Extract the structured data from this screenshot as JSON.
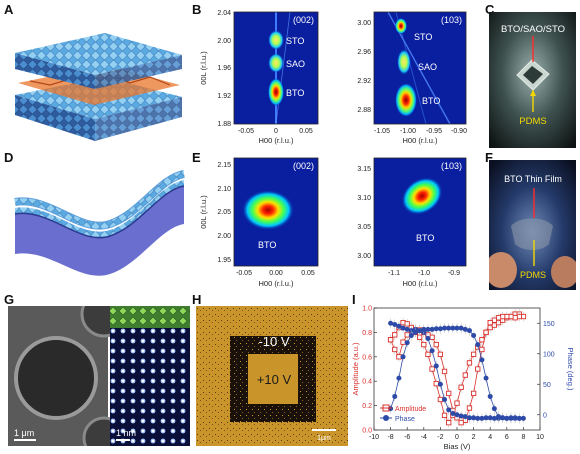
{
  "panel_labels": {
    "A": "A",
    "B": "B",
    "C": "C",
    "D": "D",
    "E": "E",
    "F": "F",
    "G": "G",
    "H": "H",
    "I": "I"
  },
  "panel_b": {
    "left": {
      "reflection": "(002)",
      "ylabel": "00L (r.l.u.)",
      "xlabel": "H00 (r.l.u.)",
      "yticks": [
        "2.04",
        "2.00",
        "1.96",
        "1.92",
        "1.88"
      ],
      "xticks": [
        "-0.05",
        "0",
        "0.05"
      ],
      "peaks": [
        "STO",
        "SAO",
        "BTO"
      ]
    },
    "right": {
      "reflection": "(103)",
      "xlabel": "H00 (r.l.u.)",
      "yticks": [
        "3.00",
        "2.96",
        "2.92",
        "2.88"
      ],
      "xticks": [
        "-1.05",
        "-1.00",
        "-0.95",
        "-0.90"
      ],
      "peaks": [
        "STO",
        "SAO",
        "BTO"
      ]
    }
  },
  "panel_c": {
    "label_top": "BTO/SAO/STO",
    "label_bottom": "PDMS"
  },
  "panel_e": {
    "left": {
      "reflection": "(002)",
      "ylabel": "00L (r.l.u.)",
      "xlabel": "H00 (r.l.u.)",
      "yticks": [
        "2.15",
        "2.10",
        "2.05",
        "2.00",
        "1.95"
      ],
      "xticks": [
        "-0.05",
        "0.00",
        "0.05"
      ],
      "peak": "BTO"
    },
    "right": {
      "reflection": "(103)",
      "xlabel": "H00 (r.l.u.)",
      "yticks": [
        "3.15",
        "3.10",
        "3.05",
        "3.00"
      ],
      "xticks": [
        "-1.1",
        "-1.0",
        "-0.9"
      ],
      "peak": "BTO"
    }
  },
  "panel_f": {
    "label_top": "BTO Thin Film",
    "label_bottom": "PDMS"
  },
  "panel_g": {
    "scale_left": "1 μm",
    "scale_right": "1 nm"
  },
  "panel_h": {
    "outer": "-10 V",
    "inner": "+10 V",
    "scale": "1μm"
  },
  "colors": {
    "amplitude": "#d9302c",
    "phase": "#2d4aa8",
    "yellow": "#f5d800"
  },
  "chart_data": {
    "type": "line",
    "title": "",
    "xlabel": "Bias (V)",
    "ylabel": "Amplitude (a.u.)",
    "ylabel_right": "Phase (deg.)",
    "xlim": [
      -10,
      10
    ],
    "ylim": [
      0,
      1.0
    ],
    "ylim_right": [
      -25,
      175
    ],
    "xticks": [
      "-10",
      "-8",
      "-6",
      "-4",
      "-2",
      "0",
      "2",
      "4",
      "6",
      "8",
      "10"
    ],
    "yticks": [
      "0.0",
      "0.2",
      "0.4",
      "0.6",
      "0.8",
      "1.0"
    ],
    "yticks_right": [
      "0",
      "50",
      "100",
      "150"
    ],
    "legend": [
      "Amplitude",
      "Phase"
    ],
    "series": [
      {
        "name": "Amplitude",
        "axis": "left",
        "x": [
          -8,
          -7.5,
          -7,
          -6.5,
          -6,
          -5.5,
          -5,
          -4.5,
          -4,
          -3.5,
          -3,
          -2.5,
          -2,
          -1.5,
          -1,
          -0.5,
          0,
          0.5,
          1,
          1.5,
          2,
          2.5,
          3,
          3.5,
          4,
          4.5,
          5,
          5.5,
          6,
          6.5,
          7,
          7.5,
          8,
          7.5,
          7,
          6.5,
          6,
          5.5,
          5,
          4.5,
          4,
          3.5,
          3,
          2.5,
          2,
          1.5,
          1,
          0.5,
          0,
          -0.5,
          -1,
          -1.5,
          -2,
          -2.5,
          -3,
          -3.5,
          -4,
          -4.5,
          -5,
          -5.5,
          -6,
          -6.5,
          -7,
          -7.5,
          -8
        ],
        "y": [
          0.74,
          0.78,
          0.84,
          0.88,
          0.87,
          0.84,
          0.8,
          0.76,
          0.7,
          0.62,
          0.5,
          0.38,
          0.25,
          0.12,
          0.06,
          0.12,
          0.22,
          0.35,
          0.45,
          0.55,
          0.62,
          0.68,
          0.74,
          0.8,
          0.84,
          0.86,
          0.88,
          0.9,
          0.92,
          0.93,
          0.95,
          0.95,
          0.93,
          0.93,
          0.92,
          0.93,
          0.93,
          0.93,
          0.92,
          0.9,
          0.88,
          0.8,
          0.66,
          0.5,
          0.3,
          0.18,
          0.08,
          0.06,
          0.1,
          0.16,
          0.3,
          0.48,
          0.62,
          0.7,
          0.76,
          0.78,
          0.8,
          0.82,
          0.82,
          0.8,
          0.78,
          0.72,
          0.6,
          0.66,
          0.74
        ]
      },
      {
        "name": "Phase",
        "axis": "right",
        "x": [
          -8,
          -7.5,
          -7,
          -6.5,
          -6,
          -5.5,
          -5,
          -4.5,
          -4,
          -3.5,
          -3,
          -2.5,
          -2,
          -1.5,
          -1,
          -0.5,
          0,
          0.5,
          1,
          1.5,
          2,
          2.5,
          3,
          3.5,
          4,
          4.5,
          5,
          5.5,
          6,
          6.5,
          7,
          7.5,
          8,
          7.5,
          7,
          6.5,
          6,
          5.5,
          5,
          4.5,
          4,
          3.5,
          3,
          2.5,
          2,
          1.5,
          1,
          0.5,
          0,
          -0.5,
          -1,
          -1.5,
          -2,
          -2.5,
          -3,
          -3.5,
          -4,
          -4.5,
          -5,
          -5.5,
          -6,
          -6.5,
          -7,
          -7.5,
          -8
        ],
        "y": [
          150,
          148,
          145,
          142,
          140,
          138,
          140,
          138,
          135,
          125,
          105,
          80,
          50,
          25,
          8,
          2,
          0,
          -2,
          -3,
          -5,
          -5,
          -6,
          -6,
          -5,
          -5,
          -6,
          -6,
          -5,
          -6,
          -6,
          -6,
          -6,
          -6,
          -6,
          -5,
          -5,
          -6,
          -5,
          -3,
          10,
          30,
          60,
          90,
          115,
          130,
          138,
          140,
          142,
          142,
          142,
          142,
          142,
          141,
          141,
          140,
          140,
          140,
          138,
          135,
          130,
          118,
          95,
          60,
          30,
          10
        ]
      }
    ]
  }
}
